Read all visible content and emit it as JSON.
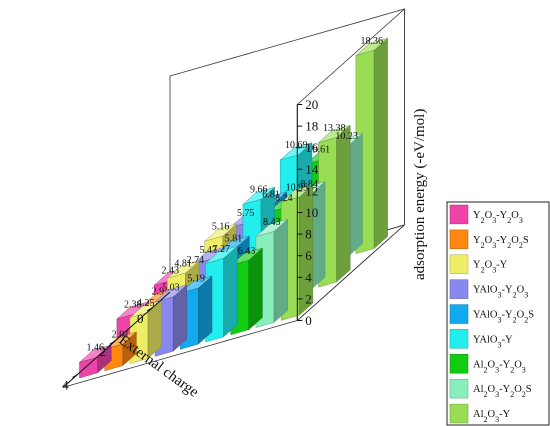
{
  "chart_data": {
    "type": "bar",
    "title": "",
    "xlabel": "External charge",
    "ylabel": "adsorption energy (-eV/mol)",
    "categories": [
      "0",
      "2",
      "4"
    ],
    "zlim": [
      0,
      20
    ],
    "z_ticks": [
      "0",
      "2",
      "4",
      "6",
      "8",
      "10",
      "12",
      "14",
      "16",
      "18",
      "20"
    ],
    "legend_position": "right",
    "series": [
      {
        "name": "Y2O3-Y2O3",
        "label_main": "Y",
        "subs": [
          "2",
          "3",
          "2",
          "3"
        ],
        "parts": [
          "",
          "O",
          "-Y",
          "O",
          ""
        ],
        "color": "#ee44aa",
        "values": [
          2.43,
          2.38,
          1.46
        ]
      },
      {
        "name": "Y2O3-Y2O2S",
        "color": "#ff8811",
        "values": [
          2.74,
          2.9,
          2.01
        ]
      },
      {
        "name": "Y2O3-Y",
        "color": "#eeee66",
        "values": [
          5.16,
          4.81,
          4.25
        ]
      },
      {
        "name": "YAlO3-Y2O3",
        "color": "#8888ee",
        "values": [
          5.75,
          5.43,
          5.03
        ]
      },
      {
        "name": "YAlO3-Y2O2S",
        "color": "#11aaee",
        "values": [
          6.81,
          5.81,
          5.19
        ]
      },
      {
        "name": "YAlO3-Y",
        "color": "#22eeee",
        "values": [
          10.69,
          9.66,
          7.27
        ]
      },
      {
        "name": "Al2O3-Y2O3",
        "color": "#11cc11",
        "values": [
          9.61,
          8.24,
          6.43
        ]
      },
      {
        "name": "Al2O3-Y2O2S",
        "color": "#88eebb",
        "values": [
          10.23,
          8.84,
          8.43
        ]
      },
      {
        "name": "Al2O3-Y",
        "color": "#99dd55",
        "values": [
          18.36,
          13.38,
          10.95
        ]
      }
    ],
    "legend_rich": [
      [
        [
          "Y",
          ""
        ],
        [
          "2",
          "sub"
        ],
        [
          "O",
          ""
        ],
        [
          "3",
          "sub"
        ],
        [
          "-Y",
          ""
        ],
        [
          "2",
          "sub"
        ],
        [
          "O",
          ""
        ],
        [
          "3",
          "sub"
        ]
      ],
      [
        [
          "Y",
          ""
        ],
        [
          "2",
          "sub"
        ],
        [
          "O",
          ""
        ],
        [
          "3",
          "sub"
        ],
        [
          "-Y",
          ""
        ],
        [
          "2",
          "sub"
        ],
        [
          "O",
          ""
        ],
        [
          "2",
          "sub"
        ],
        [
          "S",
          ""
        ]
      ],
      [
        [
          "Y",
          ""
        ],
        [
          "2",
          "sub"
        ],
        [
          "O",
          ""
        ],
        [
          "3",
          "sub"
        ],
        [
          "-Y",
          ""
        ]
      ],
      [
        [
          "YAlO",
          ""
        ],
        [
          "3",
          "sub"
        ],
        [
          "-Y",
          ""
        ],
        [
          "2",
          "sub"
        ],
        [
          "O",
          ""
        ],
        [
          "3",
          "sub"
        ]
      ],
      [
        [
          "YAlO",
          ""
        ],
        [
          "3",
          "sub"
        ],
        [
          "-Y",
          ""
        ],
        [
          "2",
          "sub"
        ],
        [
          "O",
          ""
        ],
        [
          "2",
          "sub"
        ],
        [
          "S",
          ""
        ]
      ],
      [
        [
          "YAlO",
          ""
        ],
        [
          "3",
          "sub"
        ],
        [
          "-Y",
          ""
        ]
      ],
      [
        [
          "Al",
          ""
        ],
        [
          "2",
          "sub"
        ],
        [
          "O",
          ""
        ],
        [
          "3",
          "sub"
        ],
        [
          "-Y",
          ""
        ],
        [
          "2",
          "sub"
        ],
        [
          "O",
          ""
        ],
        [
          "3",
          "sub"
        ]
      ],
      [
        [
          "Al",
          ""
        ],
        [
          "2",
          "sub"
        ],
        [
          "O",
          ""
        ],
        [
          "3",
          "sub"
        ],
        [
          "-Y",
          ""
        ],
        [
          "2",
          "sub"
        ],
        [
          "O",
          ""
        ],
        [
          "2",
          "sub"
        ],
        [
          "S",
          ""
        ]
      ],
      [
        [
          "Al",
          ""
        ],
        [
          "2",
          "sub"
        ],
        [
          "O",
          ""
        ],
        [
          "3",
          "sub"
        ],
        [
          "-Y",
          ""
        ]
      ]
    ]
  }
}
